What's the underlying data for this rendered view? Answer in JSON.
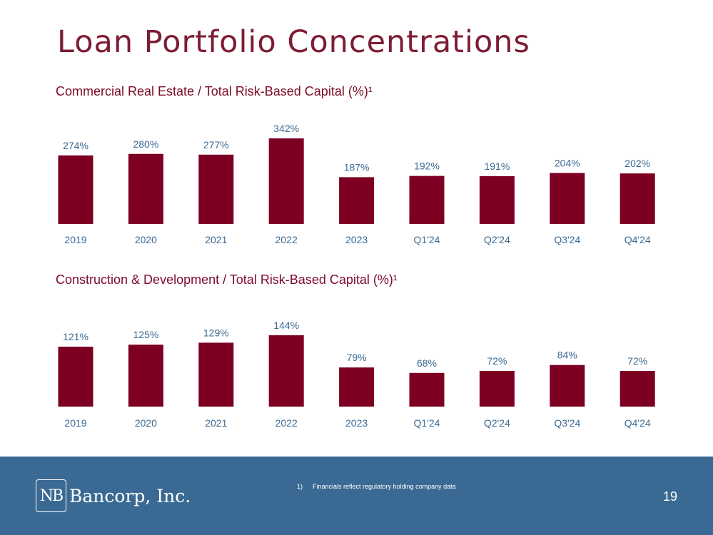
{
  "title": "Loan Portfolio Concentrations",
  "chart_data": [
    {
      "type": "bar",
      "title": "Commercial Real Estate / Total Risk-Based Capital (%)¹",
      "categories": [
        "2019",
        "2020",
        "2021",
        "2022",
        "2023",
        "Q1'24",
        "Q2'24",
        "Q3'24",
        "Q4'24"
      ],
      "values": [
        274,
        280,
        277,
        342,
        187,
        192,
        191,
        204,
        202
      ],
      "labels": [
        "274%",
        "280%",
        "277%",
        "342%",
        "187%",
        "192%",
        "191%",
        "204%",
        "202%"
      ],
      "ylim": [
        0,
        342
      ],
      "xlabel": "",
      "ylabel": "",
      "grid": false,
      "bar_color": "#7d0023",
      "label_color": "#3a6a93"
    },
    {
      "type": "bar",
      "title": "Construction & Development / Total Risk-Based Capital (%)¹",
      "categories": [
        "2019",
        "2020",
        "2021",
        "2022",
        "2023",
        "Q1'24",
        "Q2'24",
        "Q3'24",
        "Q4'24"
      ],
      "values": [
        121,
        125,
        129,
        144,
        79,
        68,
        72,
        84,
        72
      ],
      "labels": [
        "121%",
        "125%",
        "129%",
        "144%",
        "79%",
        "68%",
        "72%",
        "84%",
        "72%"
      ],
      "ylim": [
        0,
        144
      ],
      "xlabel": "",
      "ylabel": "",
      "grid": false,
      "bar_color": "#7d0023",
      "label_color": "#3a6a93"
    }
  ],
  "footer": {
    "logo_mark": "NB",
    "company_name": "Bancorp, Inc.",
    "footnote_number": "1)",
    "footnote_text": "Financials reflect regulatory holding company data",
    "page_number": "19",
    "background_color": "#3a6a93"
  }
}
